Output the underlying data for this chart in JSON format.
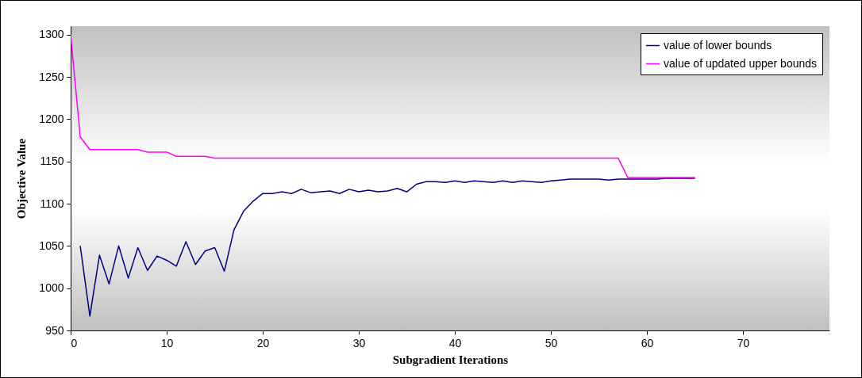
{
  "chart_data": {
    "type": "line",
    "xlabel": "Subgradient Iterations",
    "ylabel": "Objective Value",
    "x": [
      0,
      1,
      2,
      3,
      4,
      5,
      6,
      7,
      8,
      9,
      10,
      11,
      12,
      13,
      14,
      15,
      16,
      17,
      18,
      19,
      20,
      21,
      22,
      23,
      24,
      25,
      26,
      27,
      28,
      29,
      30,
      31,
      32,
      33,
      34,
      35,
      36,
      37,
      38,
      39,
      40,
      41,
      42,
      43,
      44,
      45,
      46,
      47,
      48,
      49,
      50,
      51,
      52,
      53,
      54,
      55,
      56,
      57,
      58,
      59,
      60,
      61,
      62,
      63,
      64,
      65
    ],
    "series": [
      {
        "name": "value of lower bounds",
        "color": "#000080",
        "values": [
          null,
          1050,
          967,
          1039,
          1005,
          1050,
          1012,
          1048,
          1021,
          1038,
          1033,
          1026,
          1055,
          1028,
          1044,
          1048,
          1020,
          1069,
          1091,
          1103,
          1112,
          1112,
          1114,
          1112,
          1117,
          1113,
          1114,
          1115,
          1112,
          1117,
          1114,
          1116,
          1114,
          1115,
          1118,
          1114,
          1123,
          1126,
          1126,
          1125,
          1127,
          1125,
          1127,
          1126,
          1125,
          1127,
          1125,
          1127,
          1126,
          1125,
          1127,
          1128,
          1129,
          1129,
          1129,
          1129,
          1128,
          1129,
          1129,
          1129,
          1129,
          1129,
          1130,
          1130,
          1130,
          1130
        ]
      },
      {
        "name": "value of updated upper bounds",
        "color": "#ff00ff",
        "values": [
          1300,
          1179,
          1164,
          1164,
          1164,
          1164,
          1164,
          1164,
          1161,
          1161,
          1161,
          1156,
          1156,
          1156,
          1156,
          1154,
          1154,
          1154,
          1154,
          1154,
          1154,
          1154,
          1154,
          1154,
          1154,
          1154,
          1154,
          1154,
          1154,
          1154,
          1154,
          1154,
          1154,
          1154,
          1154,
          1154,
          1154,
          1154,
          1154,
          1154,
          1154,
          1154,
          1154,
          1154,
          1154,
          1154,
          1154,
          1154,
          1154,
          1154,
          1154,
          1154,
          1154,
          1154,
          1154,
          1154,
          1154,
          1154,
          1131,
          1131,
          1131,
          1131,
          1131,
          1131,
          1131,
          1131
        ]
      }
    ],
    "xlim": [
      0,
      79
    ],
    "xticks": [
      0,
      10,
      20,
      30,
      40,
      50,
      60,
      70
    ],
    "ylim": [
      950,
      1310
    ],
    "yticks": [
      950,
      1000,
      1050,
      1100,
      1150,
      1200,
      1250,
      1300
    ],
    "grid": false,
    "legend": "top right",
    "marker": "none",
    "line_style": "solid"
  }
}
